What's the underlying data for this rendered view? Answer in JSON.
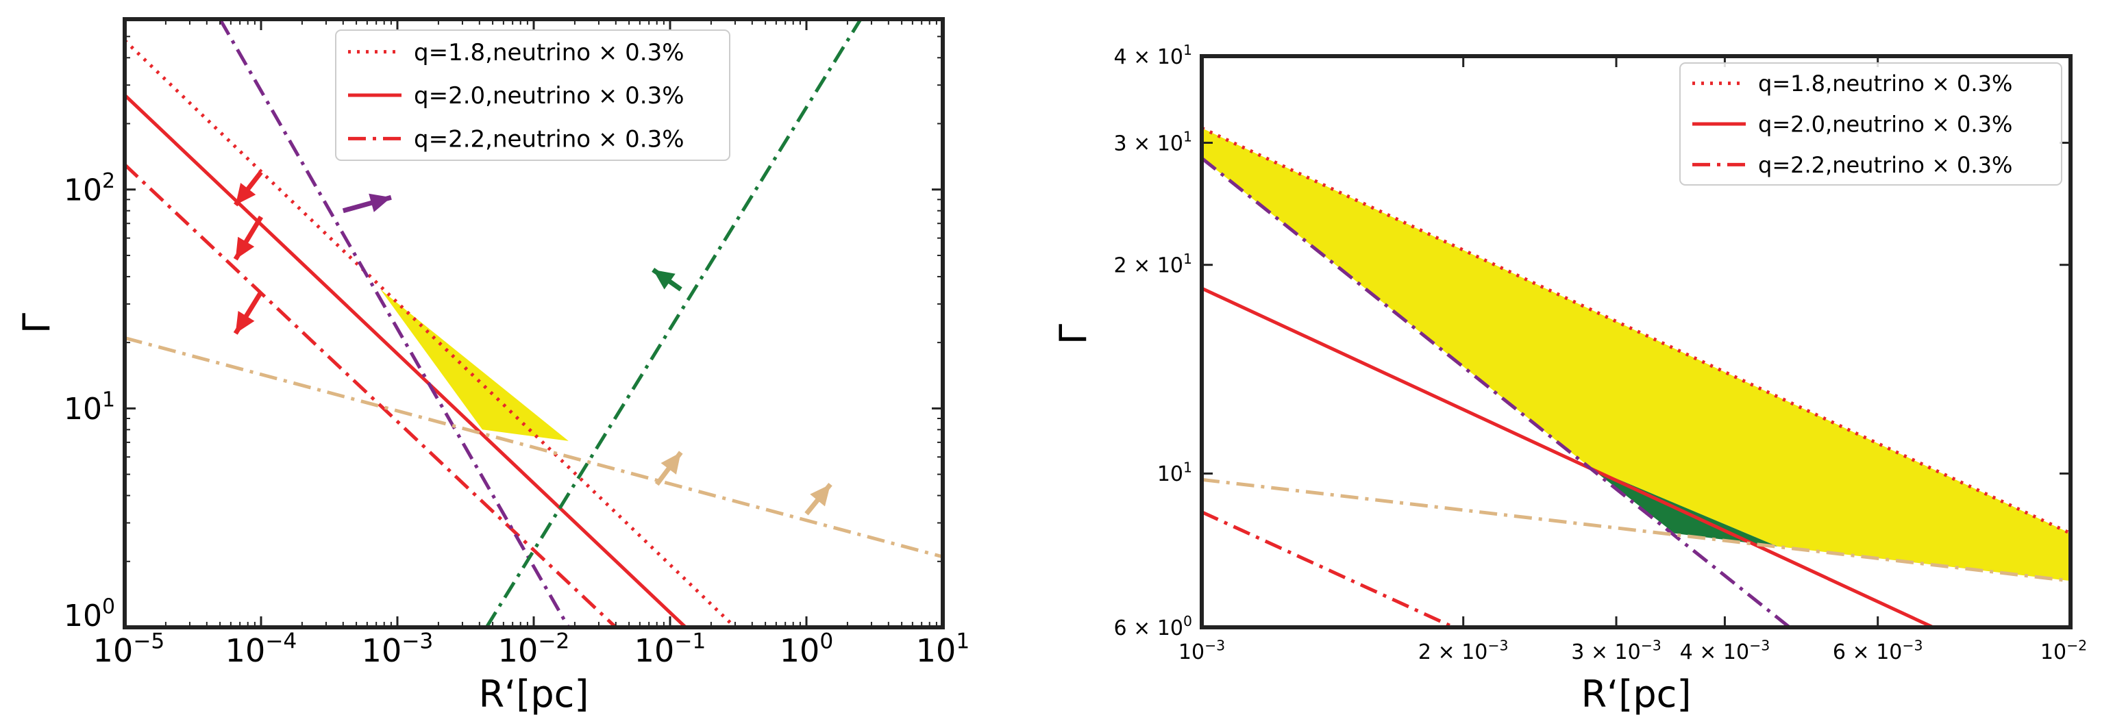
{
  "chart_data": [
    {
      "type": "line",
      "xlabel": "R‘[pc]",
      "ylabel": "Γ",
      "xscale": "log",
      "yscale": "log",
      "xlim": [
        1e-05,
        10
      ],
      "ylim": [
        1,
        600
      ],
      "grid": false,
      "legend_position": "top-center",
      "xtick_labels": [
        "10",
        "10",
        "10",
        "10",
        "10",
        "10",
        "10"
      ],
      "xtick_exponents": [
        "−5",
        "−4",
        "−3",
        "−2",
        "−1",
        "0",
        "1"
      ],
      "xtick_values": [
        1e-05,
        0.0001,
        0.001,
        0.01,
        0.1,
        1,
        10
      ],
      "ytick_labels": [
        "10",
        "10",
        "10"
      ],
      "ytick_exponents": [
        "0",
        "1",
        "2"
      ],
      "ytick_values": [
        1,
        10,
        100
      ],
      "legend": [
        {
          "label": "q=1.8,neutrino × 0.3%",
          "style": "dotted",
          "color": "#e8262a"
        },
        {
          "label": "q=2.0,neutrino ×  0.3%",
          "style": "solid",
          "color": "#e8262a"
        },
        {
          "label": "q=2.2,neutrino × 0.3%",
          "style": "dashdot",
          "color": "#e8262a"
        }
      ],
      "series": [
        {
          "name": "q=1.8,neutrino × 0.3%",
          "style": "dotted",
          "color": "#e8262a",
          "x": [
            1e-05,
            0.3
          ],
          "y": [
            480,
            1.0
          ]
        },
        {
          "name": "q=2.0,neutrino ×  0.3%",
          "style": "solid",
          "color": "#e8262a",
          "x": [
            1e-05,
            0.13
          ],
          "y": [
            270,
            1.0
          ]
        },
        {
          "style": "dashdot",
          "color": "#e8262a",
          "x": [
            1e-05,
            0.04
          ],
          "y": [
            130,
            1.0
          ]
        },
        {
          "style": "dashdot",
          "color": "#7b2a88",
          "x": [
            5e-05,
            0.018
          ],
          "y": [
            600,
            1.0
          ]
        },
        {
          "style": "dashdot",
          "color": "#1a7a3a",
          "x": [
            0.0045,
            2.5
          ],
          "y": [
            1.0,
            600
          ]
        },
        {
          "style": "dashdot",
          "color": "#ddb683",
          "x": [
            1e-05,
            10
          ],
          "y": [
            21,
            2.1
          ]
        }
      ],
      "arrows": [
        {
          "color": "#e8262a",
          "from": [
            0.0001,
            120
          ],
          "to": [
            6.5e-05,
            85
          ]
        },
        {
          "color": "#e8262a",
          "from": [
            0.0001,
            75
          ],
          "to": [
            6.5e-05,
            48
          ]
        },
        {
          "color": "#e8262a",
          "from": [
            0.0001,
            34
          ],
          "to": [
            6.5e-05,
            22
          ]
        },
        {
          "color": "#7b2a88",
          "from": [
            0.0004,
            80
          ],
          "to": [
            0.0009,
            92
          ]
        },
        {
          "color": "#1a7a3a",
          "from": [
            0.12,
            35
          ],
          "to": [
            0.075,
            43
          ]
        },
        {
          "color": "#ddb683",
          "from": [
            0.08,
            4.5
          ],
          "to": [
            0.12,
            6.3
          ]
        },
        {
          "color": "#ddb683",
          "from": [
            1.0,
            3.3
          ],
          "to": [
            1.5,
            4.5
          ]
        }
      ],
      "shaded_region": {
        "color": "#f2e80e",
        "x": [
          0.00075,
          0.0042,
          0.018
        ],
        "y": [
          35,
          8.0,
          7.1
        ]
      }
    },
    {
      "type": "line",
      "xlabel": "R‘[pc]",
      "ylabel": "Γ",
      "xscale": "log",
      "yscale": "log",
      "xlim": [
        0.001,
        0.01
      ],
      "ylim": [
        6,
        40
      ],
      "grid": false,
      "legend_position": "top-right",
      "xtick_labels": [
        "10",
        "2 × 10",
        "3 × 10",
        "4 × 10",
        "6 × 10",
        "10"
      ],
      "xtick_exponents": [
        "−3",
        "−3",
        "−3",
        "−3",
        "−3",
        "−2"
      ],
      "xtick_values": [
        0.001,
        0.002,
        0.003,
        0.004,
        0.006,
        0.01
      ],
      "ytick_labels": [
        "6 × 10",
        "10",
        "2 × 10",
        "3 × 10",
        "4 × 10"
      ],
      "ytick_exponents": [
        "0",
        "1",
        "1",
        "1",
        "1"
      ],
      "ytick_values": [
        6,
        10,
        20,
        30,
        40
      ],
      "legend": [
        {
          "label": "q=1.8,neutrino × 0.3%",
          "style": "dotted",
          "color": "#e8262a"
        },
        {
          "label": "q=2.0,neutrino ×  0.3%",
          "style": "solid",
          "color": "#e8262a"
        },
        {
          "label": "q=2.2,neutrino × 0.3%",
          "style": "dashdot",
          "color": "#e8262a"
        }
      ],
      "series": [
        {
          "name": "q=1.8,neutrino × 0.3%",
          "style": "dotted",
          "color": "#e8262a",
          "x": [
            0.001,
            0.01
          ],
          "y": [
            31.5,
            8.2
          ]
        },
        {
          "name": "q=2.0,neutrino ×  0.3%",
          "style": "solid",
          "color": "#e8262a",
          "x": [
            0.001,
            0.00695
          ],
          "y": [
            18.5,
            6.0
          ]
        },
        {
          "style": "dashdot",
          "color": "#e8262a",
          "x": [
            0.001,
            0.00195
          ],
          "y": [
            8.8,
            6.0
          ]
        },
        {
          "style": "dashdot",
          "color": "#7b2a88",
          "x": [
            0.001,
            0.00475
          ],
          "y": [
            28.5,
            6.0
          ]
        },
        {
          "style": "dashdot",
          "color": "#ddb683",
          "x": [
            0.001,
            0.01
          ],
          "y": [
            9.8,
            7.0
          ]
        }
      ],
      "shaded_regions": [
        {
          "color": "#f2e80e",
          "x": [
            0.001,
            0.01,
            0.01,
            0.0046,
            0.0028,
            0.001
          ],
          "y": [
            31.5,
            8.2,
            7.0,
            7.85,
            10.2,
            28.5
          ]
        },
        {
          "color": "#1a7a3a",
          "x": [
            0.0028,
            0.0046,
            0.0035
          ],
          "y": [
            10.2,
            7.85,
            8.2
          ]
        }
      ]
    }
  ]
}
